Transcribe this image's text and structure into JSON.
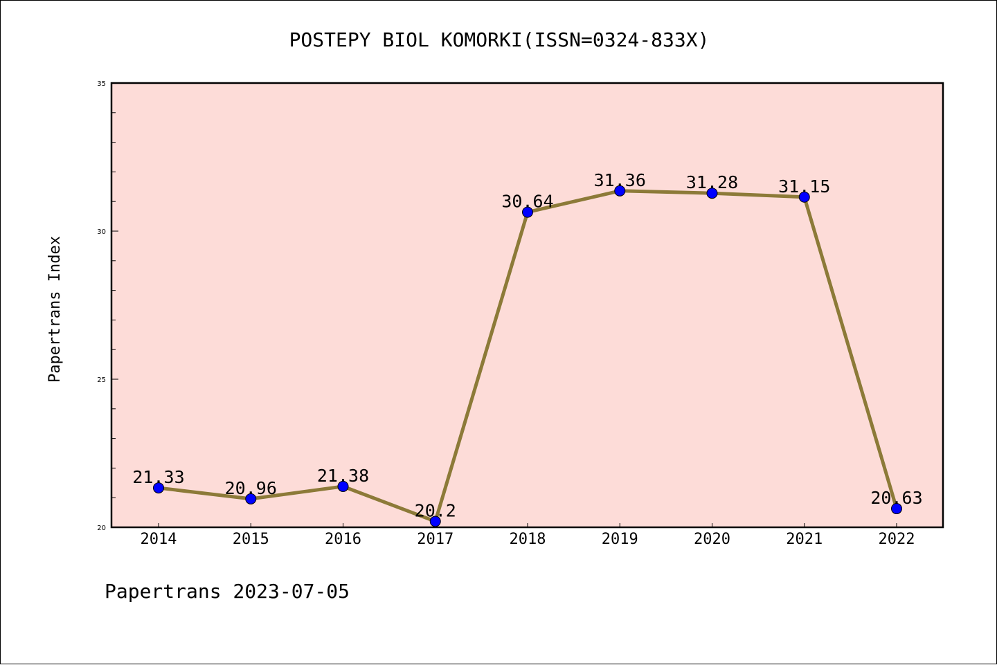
{
  "chart_data": {
    "type": "line",
    "title": "POSTEPY BIOL KOMORKI(ISSN=0324-833X)",
    "ylabel": "Papertrans Index",
    "xlabel": "",
    "categories": [
      "2014",
      "2015",
      "2016",
      "2017",
      "2018",
      "2019",
      "2020",
      "2021",
      "2022"
    ],
    "series": [
      {
        "values": [
          21.33,
          20.96,
          21.38,
          20.2,
          30.64,
          31.36,
          31.28,
          31.15,
          20.63
        ],
        "labels": [
          "21.33",
          "20.96",
          "21.38",
          "20.2",
          "30.64",
          "31.36",
          "31.28",
          "31.15",
          "20.63"
        ]
      }
    ],
    "ylim": [
      20,
      35
    ],
    "yticks": [
      20,
      25,
      30,
      35
    ],
    "ytick_labels": [
      "20",
      "25",
      "30",
      "35"
    ],
    "grid": false,
    "colors": {
      "plot_background": "#fddcd8",
      "line": "#8c7a38",
      "marker": "#0000ff"
    }
  },
  "footer": {
    "text": "Papertrans 2023-07-05"
  }
}
